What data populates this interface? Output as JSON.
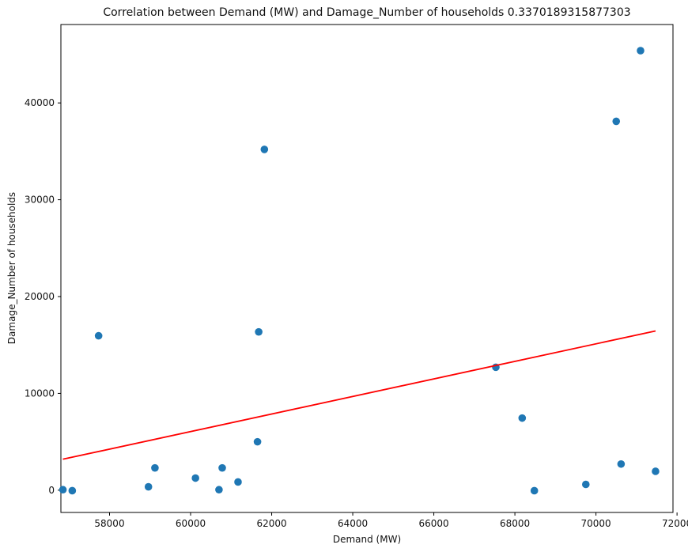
{
  "chart_data": {
    "type": "scatter",
    "title": "Correlation between Demand (MW) and Damage_Number of households 0.3370189315877303",
    "xlabel": "Demand (MW)",
    "ylabel": "Damage_Number of households",
    "xlim": [
      56800,
      71900
    ],
    "ylim": [
      -2300,
      48100
    ],
    "x_ticks": [
      58000,
      60000,
      62000,
      64000,
      66000,
      68000,
      70000,
      72000
    ],
    "y_ticks": [
      0,
      10000,
      20000,
      30000,
      40000
    ],
    "grid": false,
    "colors": {
      "points": "#1f77b4",
      "trendline": "#ff0000"
    },
    "series": [
      {
        "type": "scatter",
        "points": [
          {
            "x": 56850,
            "y": 50
          },
          {
            "x": 57080,
            "y": -50
          },
          {
            "x": 57730,
            "y": 15950
          },
          {
            "x": 58960,
            "y": 350
          },
          {
            "x": 59120,
            "y": 2300
          },
          {
            "x": 60120,
            "y": 1250
          },
          {
            "x": 60700,
            "y": 50
          },
          {
            "x": 60780,
            "y": 2300
          },
          {
            "x": 61170,
            "y": 850
          },
          {
            "x": 61650,
            "y": 5000
          },
          {
            "x": 61680,
            "y": 16350
          },
          {
            "x": 61820,
            "y": 35200
          },
          {
            "x": 67530,
            "y": 12700
          },
          {
            "x": 68180,
            "y": 7450
          },
          {
            "x": 68480,
            "y": -50
          },
          {
            "x": 69750,
            "y": 600
          },
          {
            "x": 70500,
            "y": 38100
          },
          {
            "x": 70620,
            "y": 2700
          },
          {
            "x": 71100,
            "y": 45400
          },
          {
            "x": 71470,
            "y": 1950
          }
        ]
      },
      {
        "type": "line",
        "points": [
          {
            "x": 56850,
            "y": 3200
          },
          {
            "x": 71470,
            "y": 16450
          }
        ]
      }
    ]
  }
}
